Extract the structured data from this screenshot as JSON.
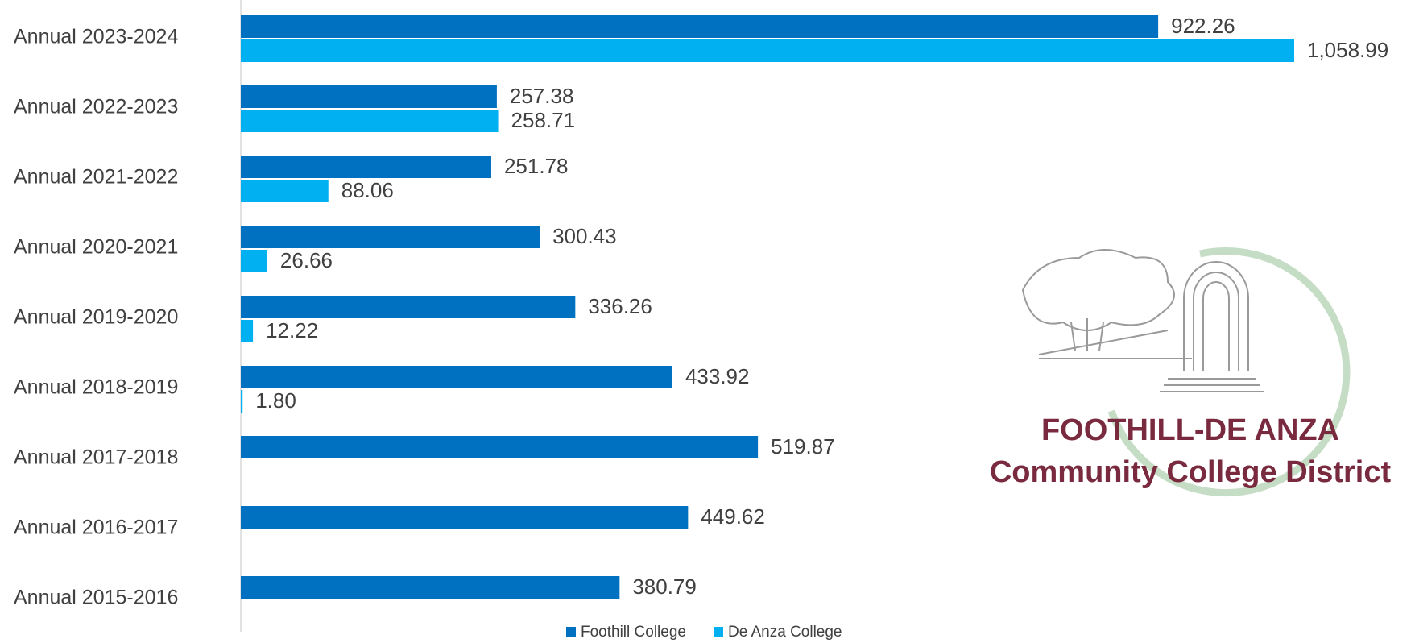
{
  "chart_data": {
    "type": "bar",
    "orientation": "horizontal",
    "categories": [
      "Annual 2023-2024",
      "Annual 2022-2023",
      "Annual 2021-2022",
      "Annual 2020-2021",
      "Annual 2019-2020",
      "Annual 2018-2019",
      "Annual 2017-2018",
      "Annual 2016-2017",
      "Annual 2015-2016"
    ],
    "series": [
      {
        "name": "Foothill College",
        "color": "#0070c0",
        "values": [
          922.26,
          257.38,
          251.78,
          300.43,
          336.26,
          433.92,
          519.87,
          449.62,
          380.79
        ],
        "value_labels": [
          "922.26",
          "257.38",
          "251.78",
          "300.43",
          "336.26",
          "433.92",
          "519.87",
          "449.62",
          "380.79"
        ]
      },
      {
        "name": "De Anza College",
        "color": "#00b0f0",
        "values": [
          1058.99,
          258.71,
          88.06,
          26.66,
          12.22,
          1.8,
          null,
          null,
          null
        ],
        "value_labels": [
          "1,058.99",
          "258.71",
          "88.06",
          "26.66",
          "12.22",
          "1.80",
          null,
          null,
          null
        ]
      }
    ],
    "legend": "bottom",
    "logo_text": [
      "FOOTHILL-DE ANZA",
      "Community College District"
    ]
  }
}
